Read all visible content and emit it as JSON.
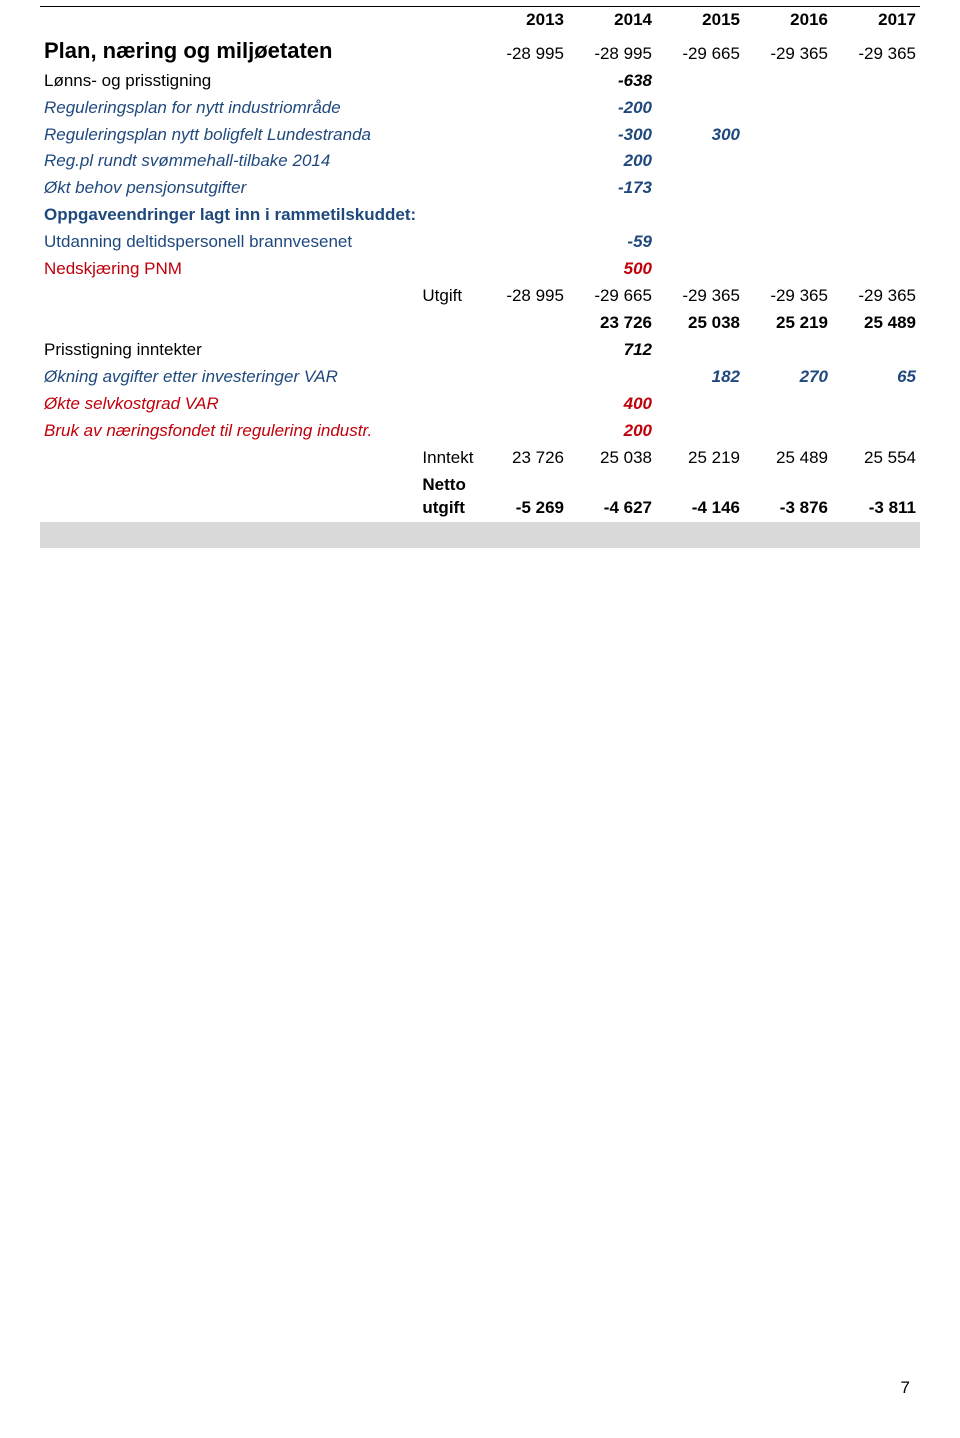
{
  "header": {
    "y2013": "2013",
    "y2014": "2014",
    "y2015": "2015",
    "y2016": "2016",
    "y2017": "2017"
  },
  "rows": {
    "title": "Plan, næring og miljøetaten",
    "title_vals": {
      "c1": "-28 995",
      "c2": "-28 995",
      "c3": "-29 665",
      "c4": "-29 365",
      "c5": "-29 365"
    },
    "lonns": "Lønns- og prisstigning",
    "lonns_v": "-638",
    "regplan_ind": "Reguleringsplan for nytt industriområde",
    "regplan_ind_v": "-200",
    "regplan_bolig": "Reguleringsplan nytt boligfelt Lundestranda",
    "regplan_bolig_v1": "-300",
    "regplan_bolig_v2": "300",
    "regpl_svom": "Reg.pl rundt svømmehall-tilbake 2014",
    "regpl_svom_v": "200",
    "okt_pensjon": "Økt behov pensjonsutgifter",
    "okt_pensjon_v": "-173",
    "oppgave": "Oppgaveendringer lagt inn i rammetilskuddet:",
    "utdanning": "Utdanning deltidspersonell brannvesenet",
    "utdanning_v": "-59",
    "nedskj": "Nedskjæring PNM",
    "nedskj_v": "500",
    "utgift_label": "Utgift",
    "utgift": {
      "c1": "-28 995",
      "c2": "-29 665",
      "c3": "-29 365",
      "c4": "-29 365",
      "c5": "-29 365"
    },
    "inntekt_hdr": {
      "c2": "23 726",
      "c3": "25 038",
      "c4": "25 219",
      "c5": "25 489"
    },
    "pris_innt": "Prisstigning inntekter",
    "pris_innt_v": "712",
    "okning_var": "Økning avgifter etter investeringer VAR",
    "okning_var_vals": {
      "c3": "182",
      "c4": "270",
      "c5": "65"
    },
    "okte_selv": "Økte selvkostgrad VAR",
    "okte_selv_v": "400",
    "bruk_fond": "Bruk av næringsfondet til regulering industr.",
    "bruk_fond_v": "200",
    "inntekt_label": "Inntekt",
    "inntekt": {
      "c1": "23 726",
      "c2": "25 038",
      "c3": "25 219",
      "c4": "25 489",
      "c5": "25 554"
    },
    "netto_label": "Netto utgift",
    "netto": {
      "c1": "-5 269",
      "c2": "-4 627",
      "c3": "-4 146",
      "c4": "-3 876",
      "c5": "-3 811"
    }
  },
  "page_number": "7"
}
